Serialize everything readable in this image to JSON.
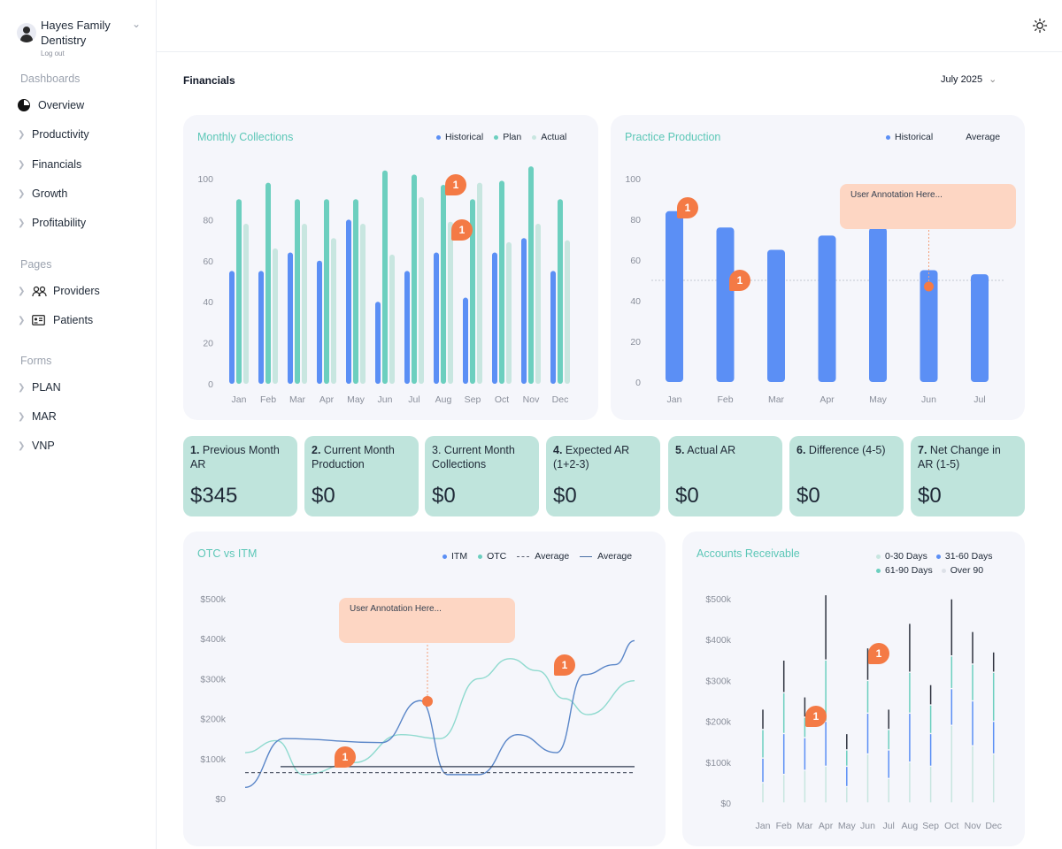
{
  "org": {
    "name": "Hayes Family Dentistry",
    "logout": "Log out"
  },
  "sidebar": {
    "dashboards_title": "Dashboards",
    "dashboards": [
      {
        "label": "Overview",
        "icon": "pie-chart-icon"
      },
      {
        "label": "Productivity",
        "icon": "chevron-right-icon"
      },
      {
        "label": "Financials",
        "icon": "chevron-right-icon"
      },
      {
        "label": "Growth",
        "icon": "chevron-right-icon"
      },
      {
        "label": "Profitability",
        "icon": "chevron-right-icon"
      }
    ],
    "pages_title": "Pages",
    "pages": [
      {
        "label": "Providers",
        "icon": "users-icon"
      },
      {
        "label": "Patients",
        "icon": "id-card-icon"
      }
    ],
    "forms_title": "Forms",
    "forms": [
      {
        "label": "PLAN"
      },
      {
        "label": "MAR"
      },
      {
        "label": "VNP"
      }
    ]
  },
  "header": {
    "title": "Financials",
    "month": "July 2025",
    "theme_icon": "sun-icon"
  },
  "colors": {
    "historical": "#5b8ff5",
    "plan": "#6ccfbf",
    "actual": "#c8e6e0",
    "accent": "#f47a45",
    "title": "#5cc7b7"
  },
  "monthly_collections": {
    "title": "Monthly Collections",
    "legend": [
      "Historical",
      "Plan",
      "Actual"
    ],
    "annotation_count": "1"
  },
  "practice_production": {
    "title": "Practice Production",
    "legend": [
      "Historical",
      "Average"
    ],
    "annotation": "User Annotation Here...",
    "annotation_count": "1"
  },
  "kpis": [
    {
      "num": "1.",
      "label": "Previous Month AR",
      "value": "$345"
    },
    {
      "num": "2.",
      "label": "Current Month Production",
      "value": "$0"
    },
    {
      "num": "3.",
      "label": "Current Month Collections",
      "value": "$0",
      "plain": true
    },
    {
      "num": "4.",
      "label": "Expected AR (1+2-3)",
      "value": "$0"
    },
    {
      "num": "5.",
      "label": "Actual AR",
      "value": "$0"
    },
    {
      "num": "6.",
      "label": "Difference (4-5)",
      "value": "$0"
    },
    {
      "num": "7.",
      "label": "Net Change in AR (1-5)",
      "value": "$0"
    }
  ],
  "otc_itm": {
    "title": "OTC vs ITM",
    "legend": [
      "ITM",
      "OTC",
      "Average",
      "Average"
    ],
    "annotation": "User Annotation Here...",
    "annotation_count": "1"
  },
  "accounts_receivable": {
    "title": "Accounts Receivable",
    "legend": [
      "0-30 Days",
      "31-60 Days",
      "61-90 Days",
      "Over 90"
    ],
    "annotation_count": "1"
  },
  "chart_data": [
    {
      "type": "bar",
      "title": "Monthly Collections",
      "categories": [
        "Jan",
        "Feb",
        "Mar",
        "Apr",
        "May",
        "Jun",
        "Jul",
        "Aug",
        "Sep",
        "Oct",
        "Nov",
        "Dec"
      ],
      "ylim": [
        0,
        100
      ],
      "yticks": [
        0,
        20,
        40,
        60,
        80,
        100
      ],
      "series": [
        {
          "name": "Historical",
          "values": [
            55,
            55,
            64,
            60,
            80,
            40,
            55,
            64,
            42,
            64,
            71,
            55
          ]
        },
        {
          "name": "Plan",
          "values": [
            90,
            98,
            90,
            90,
            90,
            104,
            102,
            97,
            90,
            99,
            106,
            90
          ]
        },
        {
          "name": "Actual",
          "values": [
            78,
            66,
            78,
            71,
            78,
            63,
            91,
            79,
            98,
            69,
            78,
            70
          ]
        }
      ],
      "legend": "top-right"
    },
    {
      "type": "bar",
      "title": "Practice Production",
      "categories": [
        "Jan",
        "Feb",
        "Mar",
        "Apr",
        "May",
        "Jun",
        "Jul"
      ],
      "ylim": [
        0,
        100
      ],
      "yticks": [
        0,
        20,
        40,
        60,
        80,
        100
      ],
      "series": [
        {
          "name": "Historical",
          "values": [
            84,
            76,
            65,
            72,
            76,
            55,
            53
          ]
        }
      ],
      "average": 50,
      "legend": "top-right"
    },
    {
      "type": "line",
      "title": "OTC vs ITM",
      "yticks": [
        "$0",
        "$100k",
        "$200k",
        "$300k",
        "$400k",
        "$500k"
      ],
      "ylim": [
        0,
        500000
      ],
      "series": [
        {
          "name": "ITM",
          "points": [
            [
              0,
              28000
            ],
            [
              0.1,
              150000
            ],
            [
              0.35,
              140000
            ],
            [
              0.45,
              245000
            ],
            [
              0.52,
              60000
            ],
            [
              0.6,
              60000
            ],
            [
              0.7,
              160000
            ],
            [
              0.8,
              115000
            ],
            [
              0.87,
              310000
            ],
            [
              0.95,
              335000
            ],
            [
              1,
              395000
            ]
          ]
        },
        {
          "name": "OTC",
          "points": [
            [
              0,
              115000
            ],
            [
              0.08,
              145000
            ],
            [
              0.15,
              60000
            ],
            [
              0.28,
              90000
            ],
            [
              0.4,
              160000
            ],
            [
              0.5,
              150000
            ],
            [
              0.6,
              300000
            ],
            [
              0.68,
              350000
            ],
            [
              0.75,
              320000
            ],
            [
              0.82,
              250000
            ],
            [
              0.88,
              210000
            ],
            [
              1,
              295000
            ]
          ]
        }
      ],
      "averages": [
        65000,
        80000
      ],
      "legend": "top-right"
    },
    {
      "type": "bar",
      "title": "Accounts Receivable",
      "categories": [
        "Jan",
        "Feb",
        "Mar",
        "Apr",
        "May",
        "Jun",
        "Jul",
        "Aug",
        "Sep",
        "Oct",
        "Nov",
        "Dec"
      ],
      "ylim": [
        0,
        500000
      ],
      "yticks": [
        "$0",
        "$100k",
        "$200k",
        "$300k",
        "$400k",
        "$500k"
      ],
      "stacked": true,
      "series": [
        {
          "name": "0-30 Days",
          "values": [
            50000,
            70000,
            80000,
            90000,
            40000,
            120000,
            60000,
            100000,
            90000,
            190000,
            140000,
            120000
          ]
        },
        {
          "name": "31-60 Days",
          "values": [
            60000,
            100000,
            80000,
            110000,
            50000,
            100000,
            70000,
            120000,
            80000,
            90000,
            110000,
            80000
          ]
        },
        {
          "name": "61-90 Days",
          "values": [
            70000,
            100000,
            50000,
            150000,
            40000,
            80000,
            50000,
            100000,
            70000,
            80000,
            90000,
            120000
          ]
        },
        {
          "name": "Over 90",
          "values": [
            50000,
            80000,
            50000,
            160000,
            40000,
            80000,
            50000,
            120000,
            50000,
            140000,
            80000,
            50000
          ]
        }
      ],
      "legend": "top-right"
    }
  ]
}
